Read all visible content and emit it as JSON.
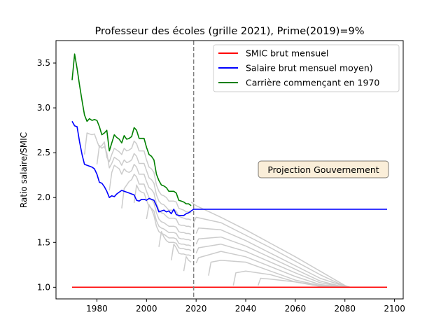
{
  "chart_data": {
    "type": "line",
    "title": "Professeur des écoles (grille 2021), Prime(2019)=9%",
    "xlabel": "",
    "ylabel": "Ratio salaire/SMIC",
    "xlim": [
      1963.5,
      2103.5
    ],
    "ylim": [
      0.87,
      3.75
    ],
    "xticks": [
      1980,
      2000,
      2020,
      2040,
      2060,
      2080,
      2100
    ],
    "yticks": [
      1.0,
      1.5,
      2.0,
      2.5,
      3.0,
      3.5
    ],
    "xtick_labels": [
      "1980",
      "2000",
      "2020",
      "2040",
      "2060",
      "2080",
      "2100"
    ],
    "ytick_labels": [
      "1.0",
      "1.5",
      "2.0",
      "2.5",
      "3.0",
      "3.5"
    ],
    "vline": {
      "x": 2019,
      "color": "#808080",
      "style": "dashed"
    },
    "annotation": {
      "text": "Projection Gouvernement",
      "x": 2061,
      "y": 2.3
    },
    "legend_position": "top-right",
    "series": [
      {
        "name": "SMIC brut mensuel",
        "color": "#ff0000",
        "x": [
          1970,
          2097
        ],
        "y": [
          1.0,
          1.0
        ]
      },
      {
        "name": "Salaire brut mensuel moyen)",
        "color": "#0000ff",
        "x": [
          1970,
          1971,
          1972,
          1973,
          1974,
          1975,
          1976,
          1977,
          1978,
          1979,
          1980,
          1981,
          1982,
          1983,
          1984,
          1985,
          1986,
          1987,
          1988,
          1989,
          1990,
          1991,
          1992,
          1993,
          1994,
          1995,
          1996,
          1997,
          1998,
          1999,
          2000,
          2001,
          2002,
          2003,
          2004,
          2005,
          2006,
          2007,
          2008,
          2009,
          2010,
          2011,
          2012,
          2013,
          2014,
          2015,
          2016,
          2017,
          2018,
          2019,
          2020,
          2030,
          2040,
          2050,
          2060,
          2070,
          2080,
          2090,
          2097
        ],
        "y": [
          2.85,
          2.8,
          2.79,
          2.62,
          2.48,
          2.37,
          2.36,
          2.35,
          2.34,
          2.32,
          2.26,
          2.17,
          2.16,
          2.12,
          2.07,
          2.0,
          2.02,
          2.01,
          2.04,
          2.06,
          2.08,
          2.07,
          2.06,
          2.05,
          2.04,
          2.03,
          1.97,
          1.96,
          1.98,
          1.98,
          1.97,
          1.99,
          1.98,
          1.97,
          1.91,
          1.84,
          1.85,
          1.86,
          1.84,
          1.85,
          1.82,
          1.87,
          1.81,
          1.8,
          1.8,
          1.8,
          1.82,
          1.83,
          1.85,
          1.87,
          1.87,
          1.87,
          1.87,
          1.87,
          1.87,
          1.87,
          1.87,
          1.87,
          1.87
        ]
      },
      {
        "name": "Carrière commençant en 1970",
        "color": "#008000",
        "x": [
          1970,
          1971,
          1972,
          1973,
          1974,
          1975,
          1976,
          1977,
          1978,
          1979,
          1980,
          1981,
          1982,
          1983,
          1984,
          1985,
          1986,
          1987,
          1988,
          1989,
          1990,
          1991,
          1992,
          1993,
          1994,
          1995,
          1996,
          1997,
          1998,
          1999,
          2000,
          2001,
          2002,
          2003,
          2004,
          2005,
          2006,
          2007,
          2008,
          2009,
          2010,
          2011,
          2012,
          2013,
          2014,
          2015,
          2016,
          2017,
          2018
        ],
        "y": [
          3.31,
          3.6,
          3.44,
          3.25,
          3.08,
          2.92,
          2.85,
          2.88,
          2.86,
          2.87,
          2.86,
          2.79,
          2.7,
          2.72,
          2.75,
          2.52,
          2.61,
          2.7,
          2.67,
          2.65,
          2.61,
          2.69,
          2.65,
          2.66,
          2.68,
          2.78,
          2.75,
          2.66,
          2.66,
          2.66,
          2.56,
          2.48,
          2.46,
          2.42,
          2.26,
          2.19,
          2.14,
          2.13,
          2.11,
          2.07,
          2.07,
          2.07,
          2.05,
          1.97,
          1.96,
          1.95,
          1.93,
          1.93,
          1.91
        ]
      }
    ],
    "background_series": [
      {
        "color": "#cccccc",
        "x": [
          1975,
          1976,
          1977,
          1978,
          1979,
          1980,
          1981,
          1982,
          1983,
          1984,
          1985,
          1986,
          1987,
          1988,
          1989,
          1990,
          1991,
          1992,
          1993,
          1994,
          1995,
          1996,
          1997,
          1998,
          1999,
          2000,
          2001,
          2002,
          2003,
          2004,
          2005,
          2006,
          2007,
          2008,
          2009,
          2010,
          2011,
          2012,
          2013,
          2014,
          2015,
          2016,
          2017,
          2018
        ],
        "y": [
          2.48,
          2.72,
          2.71,
          2.7,
          2.71,
          2.63,
          2.56,
          2.58,
          2.62,
          2.45,
          2.4,
          2.48,
          2.55,
          2.53,
          2.51,
          2.48,
          2.55,
          2.52,
          2.53,
          2.55,
          2.63,
          2.6,
          2.52,
          2.52,
          2.52,
          2.42,
          2.34,
          2.32,
          2.28,
          2.14,
          2.07,
          2.03,
          2.02,
          2.0,
          1.96,
          1.96,
          1.96,
          1.95,
          1.88,
          1.87,
          1.86,
          1.84,
          1.84,
          1.83
        ]
      },
      {
        "color": "#cccccc",
        "x": [
          1980,
          1981,
          1982,
          1983,
          1984,
          1985,
          1986,
          1987,
          1988,
          1989,
          1990,
          1991,
          1992,
          1993,
          1994,
          1995,
          1996,
          1997,
          1998,
          1999,
          2000,
          2001,
          2002,
          2003,
          2004,
          2005,
          2006,
          2007,
          2008,
          2009,
          2010,
          2011,
          2012,
          2013,
          2014,
          2015,
          2016,
          2017,
          2018
        ],
        "y": [
          2.37,
          2.58,
          2.55,
          2.57,
          2.5,
          2.33,
          2.38,
          2.45,
          2.43,
          2.41,
          2.36,
          2.42,
          2.39,
          2.4,
          2.42,
          2.49,
          2.46,
          2.38,
          2.38,
          2.38,
          2.3,
          2.22,
          2.2,
          2.16,
          2.03,
          1.96,
          1.93,
          1.92,
          1.89,
          1.86,
          1.86,
          1.86,
          1.85,
          1.79,
          1.78,
          1.77,
          1.76,
          1.76,
          1.75
        ]
      },
      {
        "color": "#cccccc",
        "x": [
          1985,
          1986,
          1987,
          1988,
          1989,
          1990,
          1991,
          1992,
          1993,
          1994,
          1995,
          1996,
          1997,
          1998,
          1999,
          2000,
          2001,
          2002,
          2003,
          2004,
          2005,
          2006,
          2007,
          2008,
          2009,
          2010,
          2011,
          2012,
          2013,
          2014,
          2015,
          2016,
          2017,
          2018
        ],
        "y": [
          2.08,
          2.28,
          2.36,
          2.34,
          2.32,
          2.26,
          2.32,
          2.29,
          2.28,
          2.3,
          2.37,
          2.34,
          2.26,
          2.26,
          2.26,
          2.18,
          2.11,
          2.09,
          2.05,
          1.93,
          1.86,
          1.83,
          1.82,
          1.79,
          1.77,
          1.77,
          1.77,
          1.76,
          1.7,
          1.69,
          1.69,
          1.68,
          1.68,
          1.67
        ]
      },
      {
        "color": "#cccccc",
        "x": [
          1990,
          1991,
          1992,
          1993,
          1994,
          1995,
          1996,
          1997,
          1998,
          1999,
          2000,
          2001,
          2002,
          2003,
          2004,
          2005,
          2006,
          2007,
          2008,
          2009,
          2010,
          2011,
          2012,
          2013,
          2014,
          2015,
          2016,
          2017,
          2018
        ],
        "y": [
          1.88,
          2.1,
          2.14,
          2.18,
          2.2,
          2.26,
          2.23,
          2.15,
          2.15,
          2.15,
          2.07,
          2.0,
          1.98,
          1.94,
          1.83,
          1.76,
          1.73,
          1.72,
          1.7,
          1.68,
          1.68,
          1.68,
          1.67,
          1.62,
          1.61,
          1.61,
          1.6,
          1.6,
          1.59
        ]
      },
      {
        "color": "#cccccc",
        "x": [
          1995,
          1996,
          1997,
          1998,
          1999,
          2000,
          2001,
          2002,
          2003,
          2004,
          2005,
          2006,
          2007,
          2008,
          2009,
          2010,
          2011,
          2012,
          2013,
          2014,
          2015,
          2016,
          2017,
          2018
        ],
        "y": [
          1.94,
          2.14,
          2.08,
          2.06,
          2.05,
          1.97,
          1.9,
          1.88,
          1.85,
          1.74,
          1.68,
          1.66,
          1.65,
          1.63,
          1.61,
          1.61,
          1.61,
          1.6,
          1.55,
          1.54,
          1.54,
          1.53,
          1.53,
          1.52
        ]
      },
      {
        "color": "#cccccc",
        "x": [
          2000,
          2001,
          2002,
          2003,
          2004,
          2005,
          2006,
          2007,
          2008,
          2009,
          2010,
          2011,
          2012,
          2013,
          2014,
          2015,
          2016,
          2017,
          2018
        ],
        "y": [
          1.76,
          1.92,
          1.87,
          1.8,
          1.68,
          1.62,
          1.6,
          1.59,
          1.57,
          1.55,
          1.55,
          1.55,
          1.54,
          1.49,
          1.48,
          1.48,
          1.47,
          1.47,
          1.46
        ]
      },
      {
        "color": "#cccccc",
        "x": [
          2005,
          2006,
          2007,
          2008,
          2009,
          2010,
          2011,
          2012,
          2013,
          2014,
          2015,
          2016,
          2017,
          2018
        ],
        "y": [
          1.45,
          1.62,
          1.56,
          1.52,
          1.5,
          1.5,
          1.5,
          1.49,
          1.44,
          1.43,
          1.43,
          1.42,
          1.42,
          1.41
        ]
      },
      {
        "color": "#cccccc",
        "x": [
          2010,
          2011,
          2012,
          2013,
          2014,
          2015,
          2016,
          2017,
          2018
        ],
        "y": [
          1.3,
          1.48,
          1.44,
          1.38,
          1.37,
          1.37,
          1.36,
          1.36,
          1.35
        ]
      },
      {
        "color": "#cccccc",
        "x": [
          2015,
          2016,
          2017,
          2018
        ],
        "y": [
          1.18,
          1.34,
          1.3,
          1.28
        ]
      },
      {
        "color": "#cccccc",
        "x": [
          2018,
          2019,
          2020,
          2030,
          2040,
          2050,
          2060,
          2070,
          2080,
          2082
        ],
        "y": [
          1.95,
          1.93,
          1.91,
          1.78,
          1.64,
          1.49,
          1.34,
          1.18,
          1.02,
          1.0
        ]
      },
      {
        "color": "#cccccc",
        "x": [
          2019,
          2020,
          2030,
          2040,
          2050,
          2060,
          2070,
          2080,
          2082
        ],
        "y": [
          1.72,
          1.78,
          1.72,
          1.58,
          1.44,
          1.29,
          1.14,
          1.01,
          1.0
        ]
      },
      {
        "color": "#cccccc",
        "x": [
          2020,
          2021,
          2030,
          2040,
          2050,
          2060,
          2070,
          2080,
          2082
        ],
        "y": [
          1.6,
          1.66,
          1.64,
          1.52,
          1.38,
          1.24,
          1.1,
          1.01,
          1.0
        ]
      },
      {
        "color": "#cccccc",
        "x": [
          2020,
          2021,
          2030,
          2040,
          2050,
          2060,
          2070,
          2080,
          2082
        ],
        "y": [
          1.48,
          1.54,
          1.56,
          1.46,
          1.33,
          1.2,
          1.07,
          1.0,
          1.0
        ]
      },
      {
        "color": "#cccccc",
        "x": [
          2020,
          2021,
          2030,
          2040,
          2050,
          2060,
          2070,
          2080,
          2082
        ],
        "y": [
          1.38,
          1.44,
          1.48,
          1.4,
          1.28,
          1.16,
          1.05,
          1.0,
          1.0
        ]
      },
      {
        "color": "#cccccc",
        "x": [
          2020,
          2021,
          2030,
          2040,
          2050,
          2060,
          2070,
          2080,
          2082
        ],
        "y": [
          1.27,
          1.33,
          1.4,
          1.34,
          1.23,
          1.12,
          1.03,
          1.0,
          1.0
        ]
      },
      {
        "color": "#cccccc",
        "x": [
          2025,
          2026,
          2030,
          2040,
          2050,
          2060,
          2070,
          2080,
          2082
        ],
        "y": [
          1.13,
          1.28,
          1.3,
          1.28,
          1.18,
          1.08,
          1.02,
          1.0,
          1.0
        ]
      },
      {
        "color": "#cccccc",
        "x": [
          2035,
          2036,
          2040,
          2050,
          2060,
          2070,
          2080,
          2082
        ],
        "y": [
          1.02,
          1.16,
          1.18,
          1.14,
          1.06,
          1.01,
          1.0,
          1.0
        ]
      },
      {
        "color": "#cccccc",
        "x": [
          2045,
          2046,
          2050,
          2060,
          2070,
          2080,
          2082
        ],
        "y": [
          1.02,
          1.1,
          1.09,
          1.06,
          1.02,
          1.0,
          1.0
        ]
      }
    ]
  }
}
